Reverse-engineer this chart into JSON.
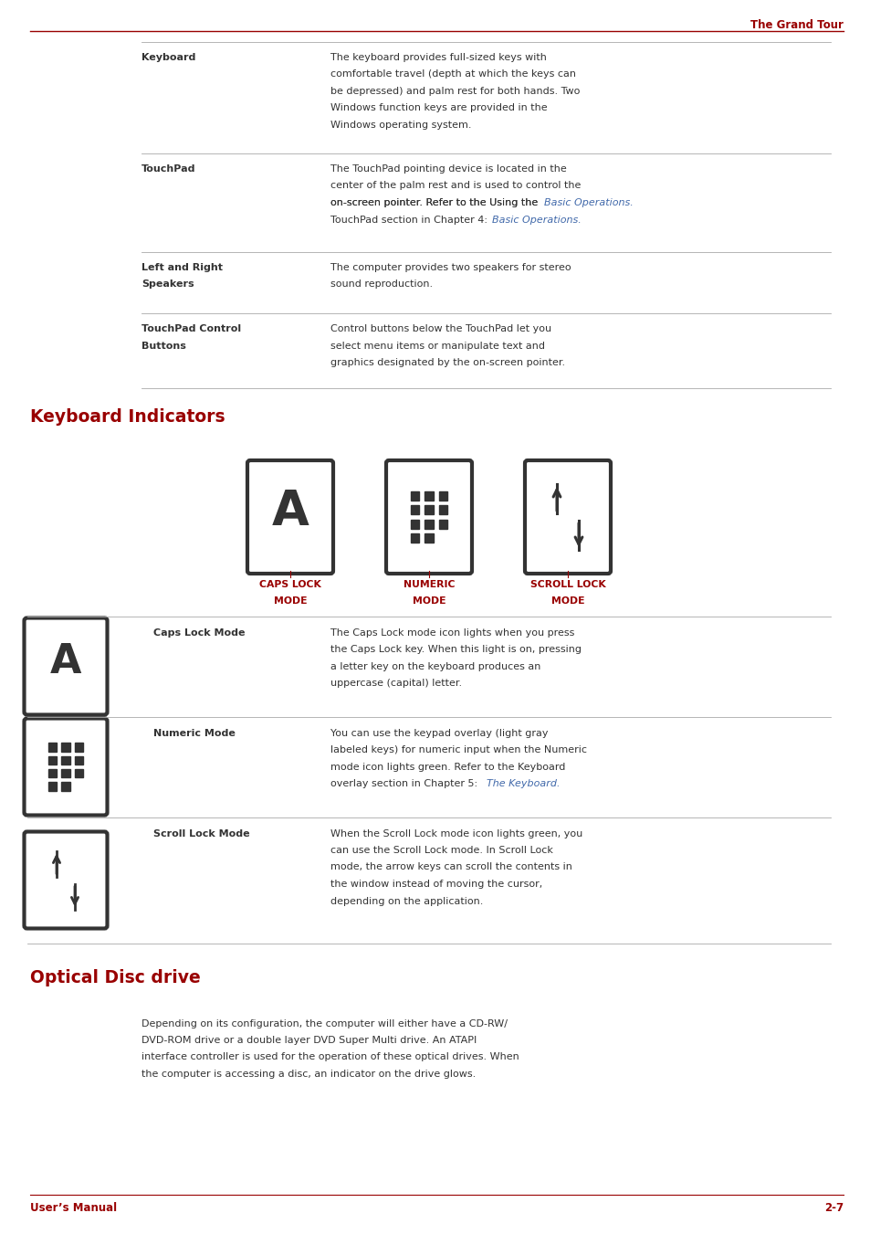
{
  "page_width": 9.54,
  "page_height": 13.51,
  "dpi": 100,
  "bg_color": "#ffffff",
  "red_color": "#990000",
  "blue_color": "#4169aa",
  "black_color": "#1a1a1a",
  "dark_gray": "#333333",
  "line_gray": "#aaaaaa",
  "header_text": "The Grand Tour",
  "footer_left": "User’s Manual",
  "footer_right": "2-7",
  "section1_title": "Keyboard Indicators",
  "section2_title": "Optical Disc drive",
  "table_rows": [
    {
      "label": "Keyboard",
      "label2": "",
      "text_lines": [
        "The keyboard provides full-sized keys with",
        "comfortable travel (depth at which the keys can",
        "be depressed) and palm rest for both hands. Two",
        "Windows function keys are provided in the",
        "Windows operating system."
      ]
    },
    {
      "label": "TouchPad",
      "label2": "",
      "text_lines": [
        "The TouchPad pointing device is located in the",
        "center of the palm rest and is used to control the",
        "on-screen pointer. Refer to the Using the",
        "TouchPad section in Chapter 4: "
      ],
      "link_text": "Basic Operations",
      "link_suffix": "."
    },
    {
      "label": "Left and Right",
      "label2": "Speakers",
      "text_lines": [
        "The computer provides two speakers for stereo",
        "sound reproduction."
      ]
    },
    {
      "label": "TouchPad Control",
      "label2": "Buttons",
      "text_lines": [
        "Control buttons below the TouchPad let you",
        "select menu items or manipulate text and",
        "graphics designated by the on-screen pointer."
      ]
    }
  ],
  "indicator_labels": [
    {
      "line1": "CAPS LOCK",
      "line2": "MODE"
    },
    {
      "line1": "NUMERIC",
      "line2": "MODE"
    },
    {
      "line1": "SCROLL LOCK",
      "line2": "MODE"
    }
  ],
  "indicator_rows": [
    {
      "label": "Caps Lock Mode",
      "text_lines": [
        "The Caps Lock mode icon lights when you press",
        "the Caps Lock key. When this light is on, pressing",
        "a letter key on the keyboard produces an",
        "uppercase (capital) letter."
      ]
    },
    {
      "label": "Numeric Mode",
      "text_lines": [
        "You can use the keypad overlay (light gray",
        "labeled keys) for numeric input when the Numeric",
        "mode icon lights green. Refer to the Keyboard",
        "overlay section in Chapter 5: "
      ],
      "link_text": "The Keyboard",
      "link_suffix": "."
    },
    {
      "label": "Scroll Lock Mode",
      "text_lines": [
        "When the Scroll Lock mode icon lights green, you",
        "can use the Scroll Lock mode. In Scroll Lock",
        "mode, the arrow keys can scroll the contents in",
        "the window instead of moving the cursor,",
        "depending on the application."
      ]
    }
  ],
  "optical_text_lines": [
    "Depending on its configuration, the computer will either have a CD-RW/",
    "DVD-ROM drive or a double layer DVD Super Multi drive. An ATAPI",
    "interface controller is used for the operation of these optical drives. When",
    "the computer is accessing a disc, an indicator on the drive glows."
  ]
}
